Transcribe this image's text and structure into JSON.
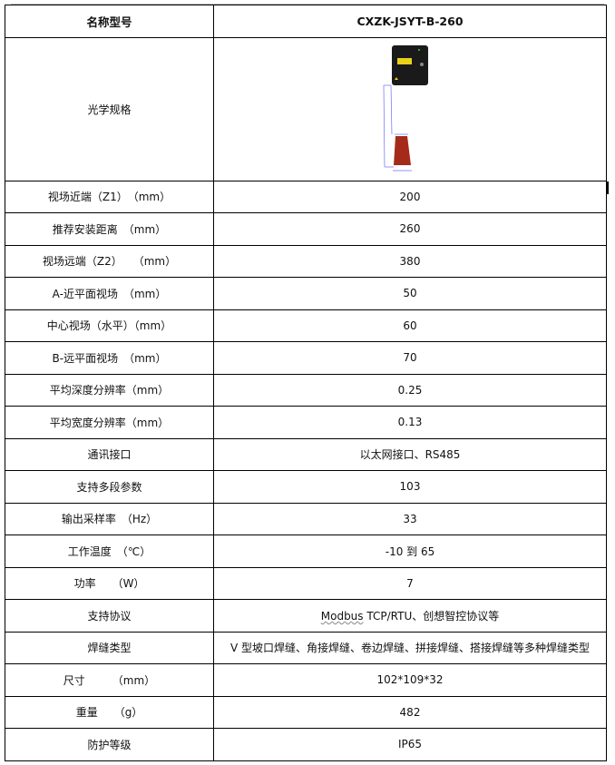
{
  "header": {
    "label": "名称型号",
    "value": "CXZK-JSYT-B-260"
  },
  "image_row": {
    "label": "光学规格",
    "figure": "sensor-fov-diagram",
    "colors": {
      "sensor": "#1a1a1a",
      "fov": "#a52a1a",
      "dimension_lines": "#6b6bff"
    }
  },
  "rows": [
    {
      "label": "视场近端（Z1）　（mm）",
      "value": "200"
    },
    {
      "label": "推荐安装距离　（mm）",
      "value": "260"
    },
    {
      "label": "视场远端（Z2）　　（mm）",
      "value": "380"
    },
    {
      "label": "A-近平面视场　（mm）",
      "value": "50"
    },
    {
      "label": "中心视场（水平）（mm）",
      "value": "60"
    },
    {
      "label": "B-远平面视场　（mm）",
      "value": "70"
    },
    {
      "label": "平均深度分辨率（mm）",
      "value": "0.25"
    },
    {
      "label": "平均宽度分辨率（mm）",
      "value": "0.13"
    },
    {
      "label": "通讯接口",
      "value": "以太网接口、RS485"
    },
    {
      "label": "支持多段参数",
      "value": "103"
    },
    {
      "label": "输出采样率　（Hz）",
      "value": "33"
    },
    {
      "label": "工作温度　（℃）",
      "value": "-10 到 65"
    },
    {
      "label": "功率　　（W）",
      "value": "7"
    },
    {
      "label": "支持协议",
      "value_a": "Modbus",
      "value_b": " TCP/RTU、创想智控协议等"
    },
    {
      "label": "焊缝类型",
      "value": "V 型坡口焊缝、角接焊缝、卷边焊缝、拼接焊缝、搭接焊缝等多种焊缝类型"
    },
    {
      "label": "尺寸　　　（mm）",
      "value": "102*109*32"
    },
    {
      "label": "重量　　（g）",
      "value": "482"
    },
    {
      "label": "防护等级",
      "value": "IP65"
    }
  ]
}
